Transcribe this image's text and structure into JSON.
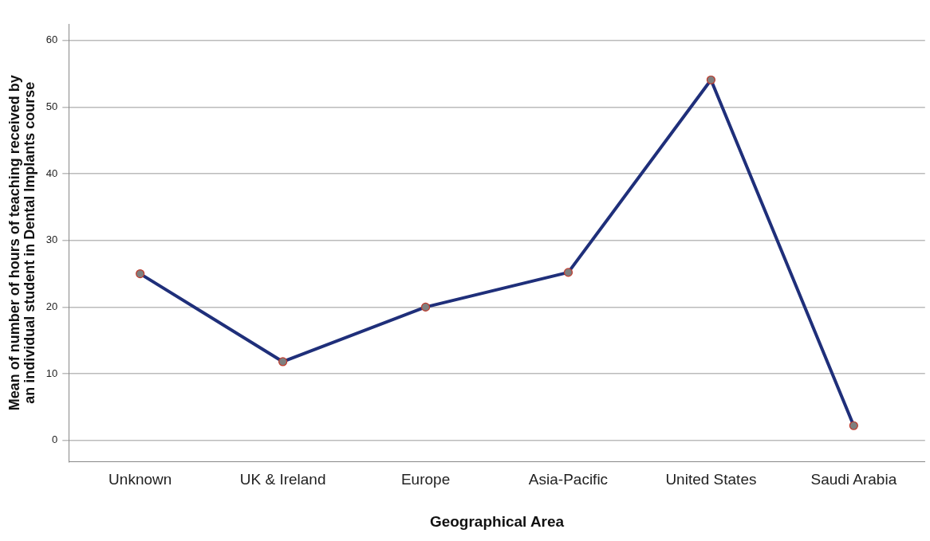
{
  "chart_data": {
    "type": "line",
    "xlabel": "Geographical Area",
    "ylabel": "Mean of number of hours of teaching received by an individual student in Dental Implants course",
    "categories": [
      "Unknown",
      "UK & Ireland",
      "Europe",
      "Asia-Pacific",
      "United States",
      "Saudi Arabia"
    ],
    "series": [
      {
        "color": "#1f2f7a",
        "values": [
          25.0,
          11.8,
          20.0,
          25.2,
          54.1,
          2.2
        ]
      }
    ],
    "ylim": [
      -3.2,
      62.5
    ],
    "yticks": [
      0,
      10,
      20,
      30,
      40,
      50,
      60
    ],
    "grid": "y",
    "legend": false,
    "marker": "circle",
    "line_style": "solid"
  }
}
